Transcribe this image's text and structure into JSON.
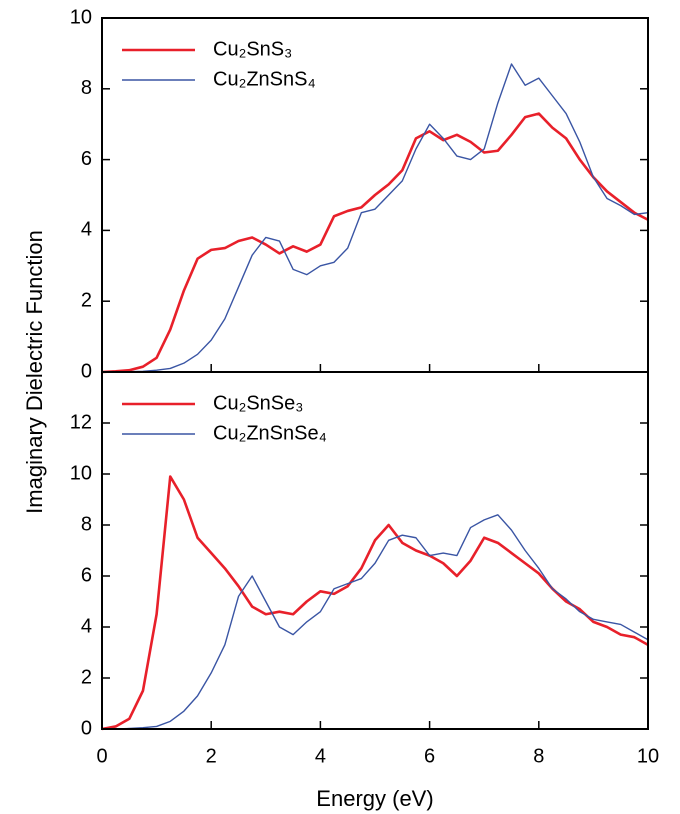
{
  "chart_data": [
    {
      "type": "line",
      "ylabel": "Imaginary Dielectric Function",
      "x": [
        0,
        0.25,
        0.5,
        0.75,
        1,
        1.25,
        1.5,
        1.75,
        2,
        2.25,
        2.5,
        2.75,
        3,
        3.25,
        3.5,
        3.75,
        4,
        4.25,
        4.5,
        4.75,
        5,
        5.25,
        5.5,
        5.75,
        6,
        6.25,
        6.5,
        6.75,
        7,
        7.25,
        7.5,
        7.75,
        8,
        8.25,
        8.5,
        8.75,
        9,
        9.25,
        9.5,
        9.75,
        10
      ],
      "series": [
        {
          "name": "Cu₂SnS₃",
          "color": "#e8202a",
          "width": 2.6,
          "values": [
            0,
            0.02,
            0.05,
            0.15,
            0.4,
            1.2,
            2.3,
            3.2,
            3.45,
            3.5,
            3.7,
            3.8,
            3.6,
            3.35,
            3.55,
            3.4,
            3.6,
            4.4,
            4.55,
            4.65,
            5.0,
            5.3,
            5.7,
            6.6,
            6.8,
            6.55,
            6.7,
            6.5,
            6.2,
            6.25,
            6.7,
            7.2,
            7.3,
            6.9,
            6.6,
            6.0,
            5.5,
            5.1,
            4.8,
            4.5,
            4.3
          ]
        },
        {
          "name": "Cu₂ZnSnS₄",
          "color": "#3a55a4",
          "width": 1.4,
          "values": [
            0,
            0,
            0.01,
            0.02,
            0.05,
            0.1,
            0.25,
            0.5,
            0.9,
            1.5,
            2.4,
            3.3,
            3.8,
            3.7,
            2.9,
            2.75,
            3.0,
            3.1,
            3.5,
            4.5,
            4.6,
            5.0,
            5.4,
            6.3,
            7.0,
            6.6,
            6.1,
            6.0,
            6.3,
            7.6,
            8.7,
            8.1,
            8.3,
            7.8,
            7.3,
            6.5,
            5.5,
            4.9,
            4.7,
            4.45,
            4.5
          ]
        }
      ],
      "xlim": [
        0,
        10
      ],
      "xticks": [
        0,
        2,
        4,
        6,
        8,
        10
      ],
      "ylim": [
        0,
        10
      ],
      "yticks": [
        0,
        2,
        4,
        6,
        8,
        10
      ]
    },
    {
      "type": "line",
      "xlabel": "Energy (eV)",
      "x": [
        0,
        0.25,
        0.5,
        0.75,
        1,
        1.25,
        1.5,
        1.75,
        2,
        2.25,
        2.5,
        2.75,
        3,
        3.25,
        3.5,
        3.75,
        4,
        4.25,
        4.5,
        4.75,
        5,
        5.25,
        5.5,
        5.75,
        6,
        6.25,
        6.5,
        6.75,
        7,
        7.25,
        7.5,
        7.75,
        8,
        8.25,
        8.5,
        8.75,
        9,
        9.25,
        9.5,
        9.75,
        10
      ],
      "series": [
        {
          "name": "Cu₂SnSe₃",
          "color": "#e8202a",
          "width": 2.6,
          "values": [
            0,
            0.1,
            0.4,
            1.5,
            4.5,
            9.9,
            9.0,
            7.5,
            6.9,
            6.3,
            5.6,
            4.8,
            4.5,
            4.6,
            4.5,
            5.0,
            5.4,
            5.3,
            5.6,
            6.3,
            7.4,
            8.0,
            7.3,
            7.0,
            6.8,
            6.5,
            6.0,
            6.6,
            7.5,
            7.3,
            6.9,
            6.5,
            6.1,
            5.5,
            5.0,
            4.7,
            4.2,
            4.0,
            3.7,
            3.6,
            3.3
          ]
        },
        {
          "name": "Cu₂ZnSnSe₄",
          "color": "#3a55a4",
          "width": 1.4,
          "values": [
            0,
            0,
            0.02,
            0.05,
            0.1,
            0.3,
            0.7,
            1.3,
            2.2,
            3.3,
            5.2,
            6.0,
            5.0,
            4.0,
            3.7,
            4.2,
            4.6,
            5.5,
            5.7,
            5.9,
            6.5,
            7.4,
            7.6,
            7.5,
            6.8,
            6.9,
            6.8,
            7.9,
            8.2,
            8.4,
            7.8,
            7.0,
            6.3,
            5.5,
            5.1,
            4.6,
            4.3,
            4.2,
            4.1,
            3.8,
            3.5
          ]
        }
      ],
      "xlim": [
        0,
        10
      ],
      "xticks": [
        0,
        2,
        4,
        6,
        8,
        10
      ],
      "ylim": [
        0,
        14
      ],
      "yticks": [
        0,
        2,
        4,
        6,
        8,
        10,
        12
      ]
    }
  ]
}
